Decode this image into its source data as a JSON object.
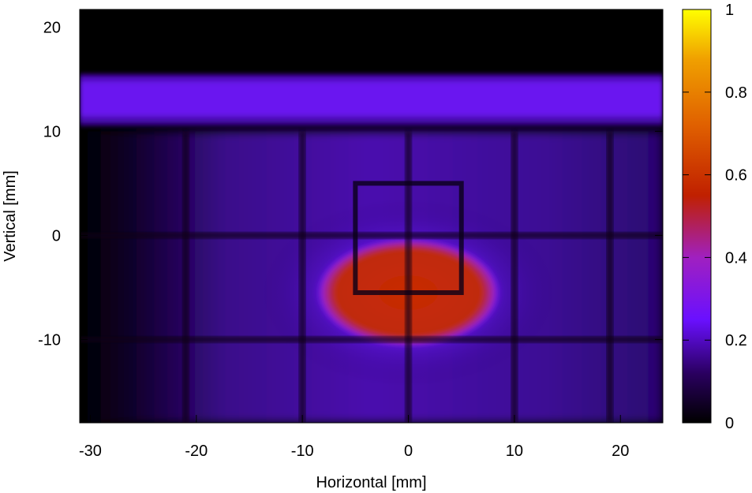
{
  "chart_data": {
    "type": "heatmap",
    "title": "",
    "xlabel": "Horizontal [mm]",
    "ylabel": "Vertical [mm]",
    "xlim": [
      -31,
      24
    ],
    "ylim": [
      -18,
      21.7
    ],
    "xticks": [
      -30,
      -20,
      -10,
      0,
      10,
      20
    ],
    "yticks": [
      -10,
      0,
      10,
      20
    ],
    "grid": false,
    "colorbar": {
      "range": [
        0,
        1
      ],
      "ticks": [
        0,
        0.2,
        0.4,
        0.6,
        0.8,
        1
      ],
      "palette": [
        "#000000",
        "#2a0060",
        "#6a10ff",
        "#a020c0",
        "#c02000",
        "#e06000",
        "#f0a000",
        "#ffff00"
      ]
    },
    "features": {
      "top_band": {
        "x": [
          -31,
          24
        ],
        "y": [
          10.5,
          15.5
        ],
        "value": 0.25
      },
      "background_level": 0.12,
      "hot_spot": {
        "center": [
          0,
          -5.5
        ],
        "x_half_width": 8,
        "y_half_height": 4.7,
        "value": 0.55
      },
      "grid_wires_x": [
        -21,
        -10,
        0,
        10,
        19
      ],
      "grid_wires_y": [
        0,
        -10
      ],
      "inner_frame": {
        "x": [
          -5,
          5
        ],
        "y": [
          -5.5,
          5
        ]
      }
    }
  }
}
